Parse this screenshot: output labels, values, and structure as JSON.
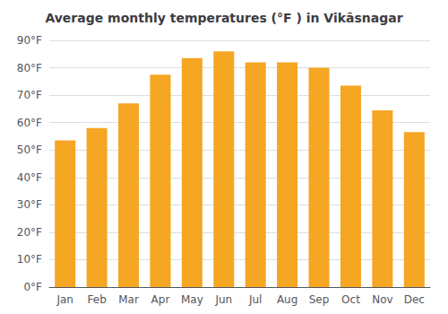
{
  "chart_data": {
    "type": "bar",
    "title": "Average monthly temperatures (°F ) in Vikāsnagar",
    "categories": [
      "Jan",
      "Feb",
      "Mar",
      "Apr",
      "May",
      "Jun",
      "Jul",
      "Aug",
      "Sep",
      "Oct",
      "Nov",
      "Dec"
    ],
    "values": [
      53.5,
      58.0,
      67.0,
      77.5,
      83.5,
      86.0,
      82.0,
      82.0,
      80.0,
      73.5,
      64.5,
      56.5
    ],
    "color": "#F5A623",
    "ylim": [
      0,
      90
    ],
    "yticks": [
      {
        "value": 0,
        "label": "0°F"
      },
      {
        "value": 10,
        "label": "10°F"
      },
      {
        "value": 20,
        "label": "20°F"
      },
      {
        "value": 30,
        "label": "30°F"
      },
      {
        "value": 40,
        "label": "40°F"
      },
      {
        "value": 50,
        "label": "50°F"
      },
      {
        "value": 60,
        "label": "60°F"
      },
      {
        "value": 70,
        "label": "70°F"
      },
      {
        "value": 80,
        "label": "80°F"
      },
      {
        "value": 90,
        "label": "90°F"
      }
    ],
    "grid": true
  }
}
